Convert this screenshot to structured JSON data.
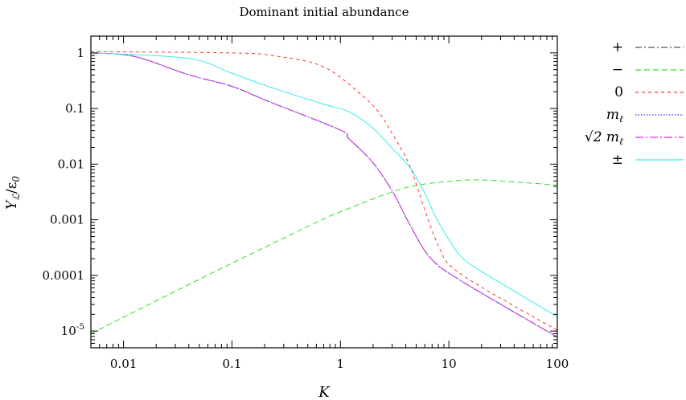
{
  "chart_data": {
    "type": "line",
    "title": "Dominant initial abundance",
    "xlabel": "K",
    "ylabel": "Y_ℒ/ε_0",
    "xscale": "log",
    "yscale": "log",
    "xlim": [
      0.005,
      100
    ],
    "ylim": [
      5e-06,
      2
    ],
    "xticks": [
      {
        "v": 0.01,
        "label": "0.01"
      },
      {
        "v": 0.1,
        "label": "0.1"
      },
      {
        "v": 1,
        "label": "1"
      },
      {
        "v": 10,
        "label": "10"
      },
      {
        "v": 100,
        "label": "100"
      }
    ],
    "yticks": [
      {
        "v": 1,
        "label": "1"
      },
      {
        "v": 0.1,
        "label": "0.1"
      },
      {
        "v": 0.01,
        "label": "0.01"
      },
      {
        "v": 0.001,
        "label": "0.001"
      },
      {
        "v": 0.0001,
        "label": "0.0001"
      },
      {
        "v": 1e-05,
        "label": "10^-5"
      }
    ],
    "grid": false,
    "legend_position": "outside-right-top",
    "series": [
      {
        "name": "+",
        "color": "#555555",
        "dash": "8 3 2 3",
        "x": [
          0.005,
          0.0127,
          0.039,
          0.1,
          0.216,
          1.0,
          1.19,
          1.98,
          3.03,
          4.19,
          5.9,
          7.7,
          10,
          20.4,
          100
        ],
        "y": [
          1.0,
          0.86,
          0.41,
          0.25,
          0.135,
          0.041,
          0.029,
          0.0108,
          0.0032,
          0.00095,
          0.00029,
          0.00016,
          0.00011,
          4.7e-05,
          7.8e-06
        ]
      },
      {
        "name": "−",
        "color": "#33dd33",
        "dash": "7 4",
        "x": [
          0.005,
          0.05,
          0.2,
          0.675,
          1.19,
          3.03,
          5.2,
          10,
          20.4,
          100
        ],
        "y": [
          9e-06,
          8.5e-05,
          0.00032,
          0.001,
          0.0016,
          0.0032,
          0.0042,
          0.0049,
          0.0052,
          0.0042
        ]
      },
      {
        "name": "0",
        "color": "#ff3333",
        "dash": "4 4",
        "x": [
          0.005,
          0.1,
          0.24,
          0.675,
          1.41,
          2.23,
          3.1,
          4.2,
          5.2,
          6.5,
          8.3,
          10.3,
          20.4,
          100
        ],
        "y": [
          1.05,
          1.0,
          0.89,
          0.58,
          0.21,
          0.088,
          0.032,
          0.011,
          0.0035,
          0.00095,
          0.00029,
          0.00015,
          6e-05,
          1.03e-05
        ]
      },
      {
        "name": "m_ℓ",
        "color": "#3333ff",
        "dash": "1.5 2",
        "x": [
          0.005,
          0.0127,
          0.039,
          0.1,
          0.216,
          1.0,
          1.19,
          1.98,
          3.03,
          4.19,
          5.9,
          7.7,
          10,
          20.4,
          100
        ],
        "y": [
          1.0,
          0.86,
          0.41,
          0.25,
          0.135,
          0.041,
          0.029,
          0.0108,
          0.0032,
          0.00095,
          0.00029,
          0.00016,
          0.00011,
          4.7e-05,
          7.8e-06
        ]
      },
      {
        "name": "√2 m_ℓ",
        "color": "#ee22ee",
        "dash": "10 3 2 3",
        "x": [
          0.005,
          0.0127,
          0.039,
          0.1,
          0.216,
          1.0,
          1.19,
          1.98,
          3.03,
          4.19,
          5.9,
          7.7,
          10,
          20.4,
          100
        ],
        "y": [
          1.0,
          0.86,
          0.41,
          0.25,
          0.135,
          0.041,
          0.029,
          0.0108,
          0.0032,
          0.00095,
          0.00029,
          0.00016,
          0.00011,
          4.7e-05,
          7.8e-06
        ]
      },
      {
        "name": "±",
        "color": "#33eeee",
        "dash": "",
        "x": [
          0.005,
          0.039,
          0.1,
          0.216,
          0.675,
          1.19,
          1.98,
          3.1,
          4.4,
          5.9,
          7.7,
          10,
          12.9,
          20.4,
          100
        ],
        "y": [
          1.0,
          0.8,
          0.43,
          0.25,
          0.122,
          0.088,
          0.045,
          0.018,
          0.0086,
          0.0032,
          0.00105,
          0.00044,
          0.00022,
          0.000115,
          1.8e-05
        ]
      }
    ]
  }
}
